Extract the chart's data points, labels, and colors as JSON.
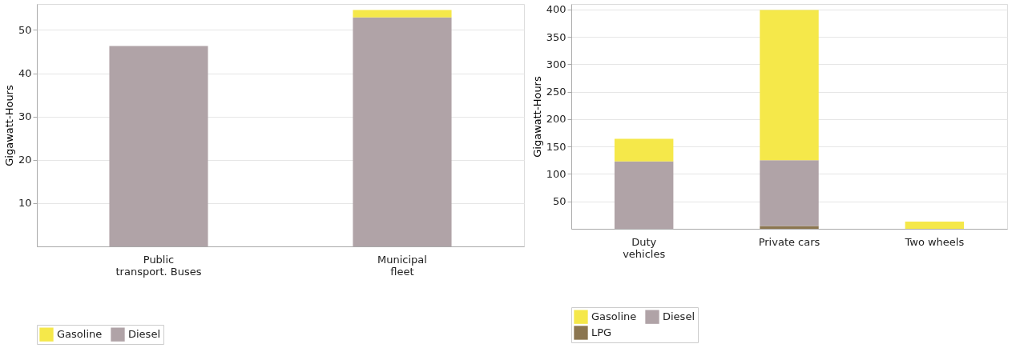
{
  "chart_data": [
    {
      "type": "bar",
      "stacked": true,
      "ylabel": "Gigawatt-Hours",
      "categories": [
        "Public transport. Buses",
        "Municipal fleet"
      ],
      "series": [
        {
          "name": "Diesel",
          "color": "#b0a3a7",
          "values": [
            46.3,
            52.9
          ]
        },
        {
          "name": "Gasoline",
          "color": "#f5e84a",
          "values": [
            null,
            1.7
          ]
        }
      ],
      "ylim": [
        0,
        56
      ],
      "yticks": [
        10,
        20,
        30,
        40,
        50
      ],
      "grid": "y",
      "legend": "bottom"
    },
    {
      "type": "bar",
      "stacked": true,
      "ylabel": "Gigawatt-Hours",
      "categories": [
        "Duty vehicles",
        "Private cars",
        "Two wheels"
      ],
      "series": [
        {
          "name": "LPG",
          "color": "#8b7650",
          "values": [
            null,
            5,
            null
          ]
        },
        {
          "name": "Diesel",
          "color": "#b0a3a7",
          "values": [
            123,
            120,
            null
          ]
        },
        {
          "name": "Gasoline",
          "color": "#f5e84a",
          "values": [
            41,
            274,
            13
          ]
        }
      ],
      "ylim": [
        0,
        410
      ],
      "yticks": [
        50,
        100,
        150,
        200,
        250,
        300,
        350,
        400
      ],
      "grid": "y",
      "legend": "bottom"
    }
  ]
}
